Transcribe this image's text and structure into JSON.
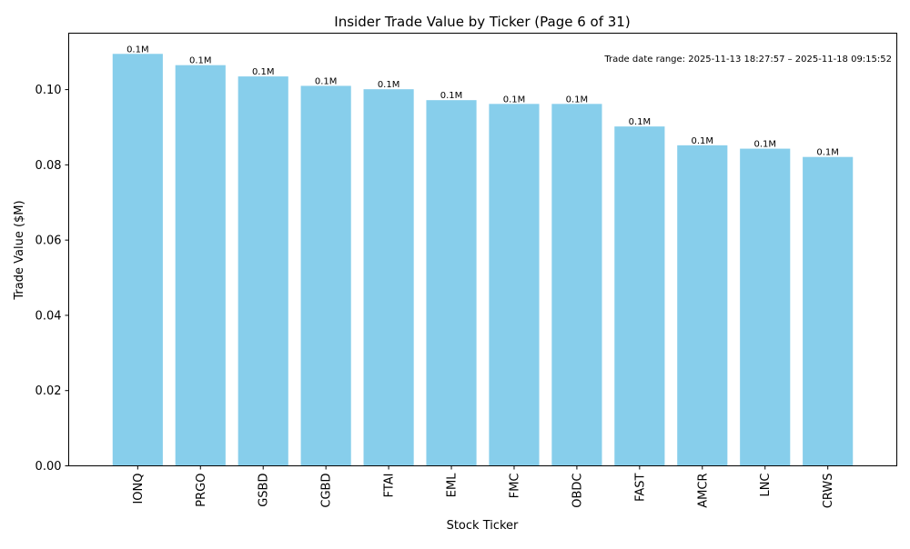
{
  "chart_data": {
    "type": "bar",
    "title": "Insider Trade Value by Ticker (Page 6 of 31)",
    "xlabel": "Stock Ticker",
    "ylabel": "Trade Value ($M)",
    "categories": [
      "IONQ",
      "PRGO",
      "GSBD",
      "CGBD",
      "FTAI",
      "EML",
      "FMC",
      "OBDC",
      "FAST",
      "AMCR",
      "LNC",
      "CRWS"
    ],
    "values": [
      0.1095,
      0.1065,
      0.1035,
      0.101,
      0.1001,
      0.0972,
      0.0962,
      0.0962,
      0.0902,
      0.0852,
      0.0843,
      0.0821
    ],
    "data_labels": [
      "0.1M",
      "0.1M",
      "0.1M",
      "0.1M",
      "0.1M",
      "0.1M",
      "0.1M",
      "0.1M",
      "0.1M",
      "0.1M",
      "0.1M",
      "0.1M"
    ],
    "ylim": [
      0,
      0.115
    ],
    "yticks": [
      0.0,
      0.02,
      0.04,
      0.06,
      0.08,
      0.1
    ],
    "ytick_labels": [
      "0.00",
      "0.02",
      "0.04",
      "0.06",
      "0.08",
      "0.10"
    ],
    "bar_color": "#87ceeb",
    "grid": false,
    "annotation": "Trade date range: 2025-11-13 18:27:57 – 2025-11-18 09:15:52"
  }
}
